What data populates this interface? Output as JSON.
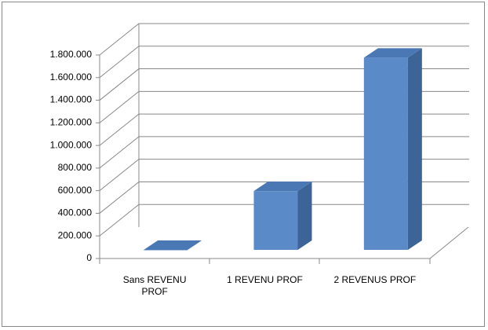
{
  "chart_data": {
    "type": "bar3d",
    "categories": [
      "Sans REVENU PROF",
      "1 REVENU PROF",
      "2 REVENUS PROF"
    ],
    "values": [
      0,
      520000,
      1700000
    ],
    "color": "#5a8ac8",
    "ylim": [
      0,
      1800000
    ],
    "yticks": [
      0,
      {
        "value": 200000,
        "label": "200.000"
      },
      {
        "value": 400000,
        "label": "400.000"
      },
      {
        "value": 600000,
        "label": "600.000"
      },
      {
        "value": 800000,
        "label": "800.000"
      },
      {
        "value": 1000000,
        "label": "1.000.000"
      },
      {
        "value": 1200000,
        "label": "1.200.000"
      },
      {
        "value": 1400000,
        "label": "1.400.000"
      },
      {
        "value": 1600000,
        "label": "1.600.000"
      },
      {
        "value": 1800000,
        "label": "1.800.000"
      }
    ],
    "grid": true
  }
}
